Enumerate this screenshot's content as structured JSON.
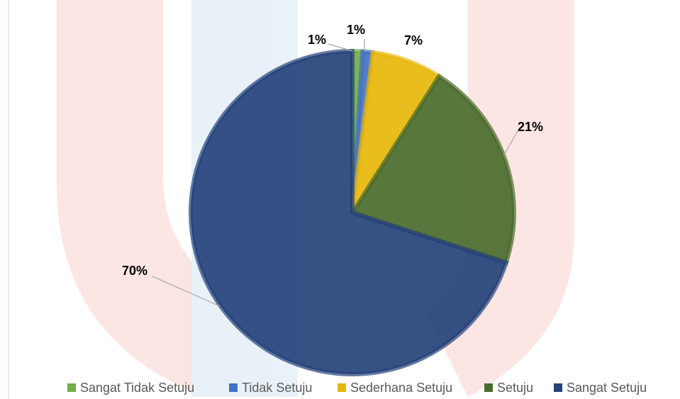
{
  "chart_data": {
    "type": "pie",
    "categories": [
      "Sangat Tidak Setuju",
      "Tidak Setuju",
      "Sederhana Setuju",
      "Setuju",
      "Sangat Setuju"
    ],
    "values": [
      1,
      1,
      7,
      21,
      70
    ],
    "value_labels": [
      "1%",
      "1%",
      "7%",
      "21%",
      "70%"
    ],
    "colors": [
      "#70ad47",
      "#4472c4",
      "#e8b70c",
      "#4a6b2c",
      "#25427a"
    ],
    "legend": "bottom"
  }
}
